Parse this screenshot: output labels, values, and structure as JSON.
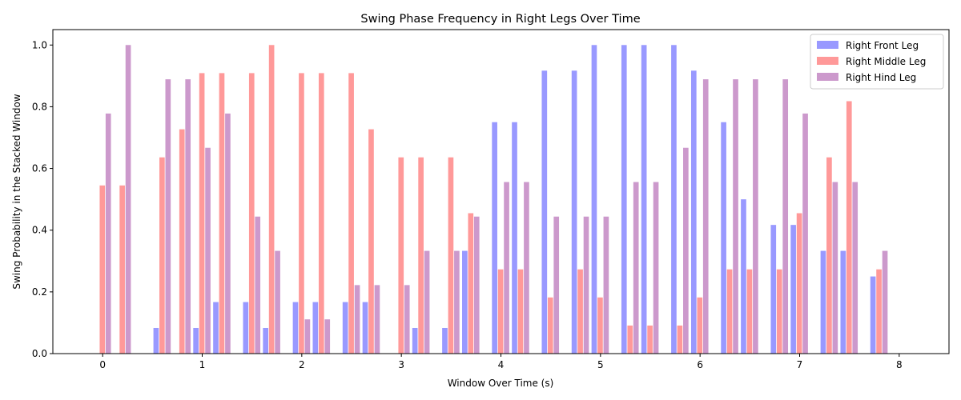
{
  "chart_data": {
    "type": "bar",
    "title": "Swing Phase Frequency in Right Legs Over Time",
    "xlabel": "Window Over Time (s)",
    "ylabel": "Swing Probability in the Stacked Window",
    "xlim": [
      -0.5,
      8.5
    ],
    "ylim": [
      0,
      1.05
    ],
    "xticks": [
      "0",
      "1",
      "2",
      "3",
      "4",
      "5",
      "6",
      "7",
      "8"
    ],
    "yticks": [
      "0.0",
      "0.2",
      "0.4",
      "0.6",
      "0.8",
      "1.0"
    ],
    "legend_position": "top-right",
    "grid": false,
    "bar_width_s": 0.06,
    "x": [
      0.0,
      0.2,
      0.6,
      0.8,
      1.0,
      1.2,
      1.5,
      1.7,
      2.0,
      2.2,
      2.5,
      2.7,
      3.0,
      3.2,
      3.5,
      3.7,
      4.0,
      4.2,
      4.5,
      4.8,
      5.0,
      5.3,
      5.5,
      5.8,
      6.0,
      6.3,
      6.5,
      6.8,
      7.0,
      7.3,
      7.5,
      7.8
    ],
    "series": [
      {
        "name": "Right Front Leg",
        "color": "#9999ff",
        "values": [
          0,
          0,
          0.083,
          0,
          0.083,
          0.167,
          0.167,
          0.083,
          0.167,
          0.167,
          0.167,
          0.167,
          0,
          0.083,
          0.083,
          0.333,
          0.75,
          0.75,
          0.917,
          0.917,
          1.0,
          1.0,
          1.0,
          1.0,
          0.917,
          0.75,
          0.5,
          0.417,
          0.417,
          0.333,
          0.333,
          0.25
        ]
      },
      {
        "name": "Right Middle Leg",
        "color": "#ff9999",
        "values": [
          0.545,
          0.545,
          0.636,
          0.727,
          0.909,
          0.909,
          0.909,
          1.0,
          0.909,
          0.909,
          0.909,
          0.727,
          0.636,
          0.636,
          0.636,
          0.455,
          0.273,
          0.273,
          0.182,
          0.273,
          0.182,
          0.091,
          0.091,
          0.091,
          0.182,
          0.273,
          0.273,
          0.273,
          0.455,
          0.636,
          0.818,
          0.273
        ]
      },
      {
        "name": "Right Hind Leg",
        "color": "#cc99cc",
        "values": [
          0.778,
          1.0,
          0.889,
          0.889,
          0.667,
          0.778,
          0.444,
          0.333,
          0.111,
          0.111,
          0.222,
          0.222,
          0.222,
          0.333,
          0.333,
          0.444,
          0.556,
          0.556,
          0.444,
          0.444,
          0.444,
          0.556,
          0.556,
          0.667,
          0.889,
          0.889,
          0.889,
          0.889,
          0.778,
          0.556,
          0.556,
          0.333
        ]
      }
    ]
  }
}
